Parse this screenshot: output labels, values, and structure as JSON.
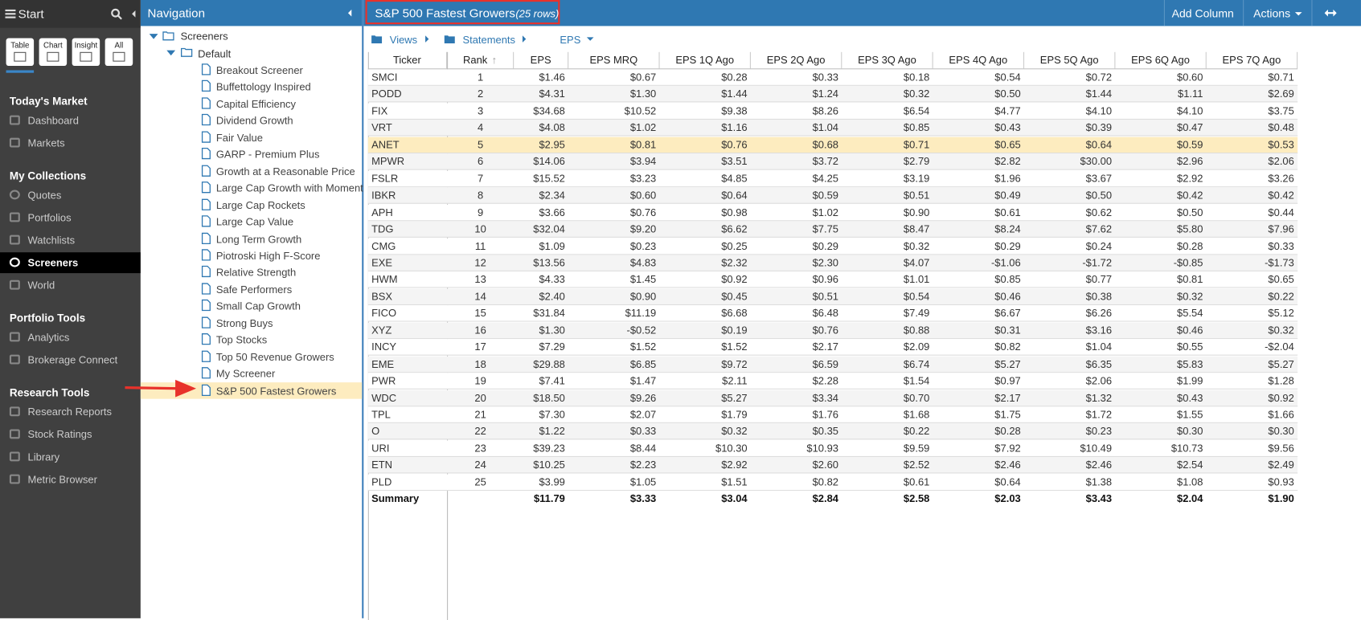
{
  "sidebar": {
    "title": "Start",
    "tabs": [
      "Table",
      "Chart",
      "Insight",
      "All"
    ],
    "active": "Screeners",
    "sections": [
      {
        "heading": "Today's Market",
        "items": [
          "Dashboard",
          "Markets"
        ]
      },
      {
        "heading": "My Collections",
        "items": [
          "Quotes",
          "Portfolios",
          "Watchlists",
          "Screeners",
          "World"
        ]
      },
      {
        "heading": "Portfolio Tools",
        "items": [
          "Analytics",
          "Brokerage Connect"
        ]
      },
      {
        "heading": "Research Tools",
        "items": [
          "Research Reports",
          "Stock Ratings",
          "Library",
          "Metric Browser"
        ]
      }
    ]
  },
  "navigation": {
    "title": "Navigation",
    "root": "Screeners",
    "folder": "Default",
    "selected": 19,
    "items": [
      "Breakout Screener",
      "Buffettology Inspired",
      "Capital Efficiency",
      "Dividend Growth",
      "Fair Value",
      "GARP - Premium Plus",
      "Growth at a Reasonable Price",
      "Large Cap Growth with Momentum",
      "Large Cap Rockets",
      "Large Cap Value",
      "Long Term Growth",
      "Piotroski High F-Score",
      "Relative Strength",
      "Safe Performers",
      "Small Cap Growth",
      "Strong Buys",
      "Top Stocks",
      "Top 50 Revenue Growers",
      "My Screener",
      "S&P 500 Fastest Growers"
    ]
  },
  "header": {
    "title": "S&P 500 Fastest Growers",
    "row_count": "(25 rows)",
    "buttons": [
      "Add Column",
      "Actions"
    ]
  },
  "toolbar": {
    "views": "Views",
    "statements": "Statements",
    "metric": "EPS"
  },
  "table": {
    "columns": [
      "Ticker",
      "Rank",
      "EPS",
      "EPS MRQ",
      "EPS 1Q Ago",
      "EPS 2Q Ago",
      "EPS 3Q Ago",
      "EPS 4Q Ago",
      "EPS 5Q Ago",
      "EPS 6Q Ago",
      "EPS 7Q Ago"
    ],
    "highlighted_row": 4,
    "rows": [
      [
        "SMCI",
        1,
        "$1.46",
        "$0.67",
        "$0.28",
        "$0.33",
        "$0.18",
        "$0.54",
        "$0.72",
        "$0.60",
        "$0.71"
      ],
      [
        "PODD",
        2,
        "$4.31",
        "$1.30",
        "$1.44",
        "$1.24",
        "$0.32",
        "$0.50",
        "$1.44",
        "$1.11",
        "$2.69"
      ],
      [
        "FIX",
        3,
        "$34.68",
        "$10.52",
        "$9.38",
        "$8.26",
        "$6.54",
        "$4.77",
        "$4.10",
        "$4.10",
        "$3.75"
      ],
      [
        "VRT",
        4,
        "$4.08",
        "$1.02",
        "$1.16",
        "$1.04",
        "$0.85",
        "$0.43",
        "$0.39",
        "$0.47",
        "$0.48"
      ],
      [
        "ANET",
        5,
        "$2.95",
        "$0.81",
        "$0.76",
        "$0.68",
        "$0.71",
        "$0.65",
        "$0.64",
        "$0.59",
        "$0.53"
      ],
      [
        "MPWR",
        6,
        "$14.06",
        "$3.94",
        "$3.51",
        "$3.72",
        "$2.79",
        "$2.82",
        "$30.00",
        "$2.96",
        "$2.06"
      ],
      [
        "FSLR",
        7,
        "$15.52",
        "$3.23",
        "$4.85",
        "$4.25",
        "$3.19",
        "$1.96",
        "$3.67",
        "$2.92",
        "$3.26"
      ],
      [
        "IBKR",
        8,
        "$2.34",
        "$0.60",
        "$0.64",
        "$0.59",
        "$0.51",
        "$0.49",
        "$0.50",
        "$0.42",
        "$0.42"
      ],
      [
        "APH",
        9,
        "$3.66",
        "$0.76",
        "$0.98",
        "$1.02",
        "$0.90",
        "$0.61",
        "$0.62",
        "$0.50",
        "$0.44"
      ],
      [
        "TDG",
        10,
        "$32.04",
        "$9.20",
        "$6.62",
        "$7.75",
        "$8.47",
        "$8.24",
        "$7.62",
        "$5.80",
        "$7.96"
      ],
      [
        "CMG",
        11,
        "$1.09",
        "$0.23",
        "$0.25",
        "$0.29",
        "$0.32",
        "$0.29",
        "$0.24",
        "$0.28",
        "$0.33"
      ],
      [
        "EXE",
        12,
        "$13.56",
        "$4.83",
        "$2.32",
        "$2.30",
        "$4.07",
        "-$1.06",
        "-$1.72",
        "-$0.85",
        "-$1.73"
      ],
      [
        "HWM",
        13,
        "$4.33",
        "$1.45",
        "$0.92",
        "$0.96",
        "$1.01",
        "$0.85",
        "$0.77",
        "$0.81",
        "$0.65"
      ],
      [
        "BSX",
        14,
        "$2.40",
        "$0.90",
        "$0.45",
        "$0.51",
        "$0.54",
        "$0.46",
        "$0.38",
        "$0.32",
        "$0.22"
      ],
      [
        "FICO",
        15,
        "$31.84",
        "$11.19",
        "$6.68",
        "$6.48",
        "$7.49",
        "$6.67",
        "$6.26",
        "$5.54",
        "$5.12"
      ],
      [
        "XYZ",
        16,
        "$1.30",
        "-$0.52",
        "$0.19",
        "$0.76",
        "$0.88",
        "$0.31",
        "$3.16",
        "$0.46",
        "$0.32"
      ],
      [
        "INCY",
        17,
        "$7.29",
        "$1.52",
        "$1.52",
        "$2.17",
        "$2.09",
        "$0.82",
        "$1.04",
        "$0.55",
        "-$2.04"
      ],
      [
        "EME",
        18,
        "$29.88",
        "$6.85",
        "$9.72",
        "$6.59",
        "$6.74",
        "$5.27",
        "$6.35",
        "$5.83",
        "$5.27"
      ],
      [
        "PWR",
        19,
        "$7.41",
        "$1.47",
        "$2.11",
        "$2.28",
        "$1.54",
        "$0.97",
        "$2.06",
        "$1.99",
        "$1.28"
      ],
      [
        "WDC",
        20,
        "$18.50",
        "$9.26",
        "$5.27",
        "$3.34",
        "$0.70",
        "$2.17",
        "$1.32",
        "$0.43",
        "$0.92"
      ],
      [
        "TPL",
        21,
        "$7.30",
        "$2.07",
        "$1.79",
        "$1.76",
        "$1.68",
        "$1.75",
        "$1.72",
        "$1.55",
        "$1.66"
      ],
      [
        "O",
        22,
        "$1.22",
        "$0.33",
        "$0.32",
        "$0.35",
        "$0.22",
        "$0.28",
        "$0.23",
        "$0.30",
        "$0.30"
      ],
      [
        "URI",
        23,
        "$39.23",
        "$8.44",
        "$10.30",
        "$10.93",
        "$9.59",
        "$7.92",
        "$10.49",
        "$10.73",
        "$9.56"
      ],
      [
        "ETN",
        24,
        "$10.25",
        "$2.23",
        "$2.92",
        "$2.60",
        "$2.52",
        "$2.46",
        "$2.46",
        "$2.54",
        "$2.49"
      ],
      [
        "PLD",
        25,
        "$3.99",
        "$1.05",
        "$1.51",
        "$0.82",
        "$0.61",
        "$0.64",
        "$1.38",
        "$1.08",
        "$0.93"
      ]
    ],
    "summary": {
      "label": "Summary",
      "values": [
        "$11.79",
        "$3.33",
        "$3.04",
        "$2.84",
        "$2.58",
        "$2.03",
        "$3.43",
        "$2.04",
        "$1.90"
      ]
    }
  }
}
